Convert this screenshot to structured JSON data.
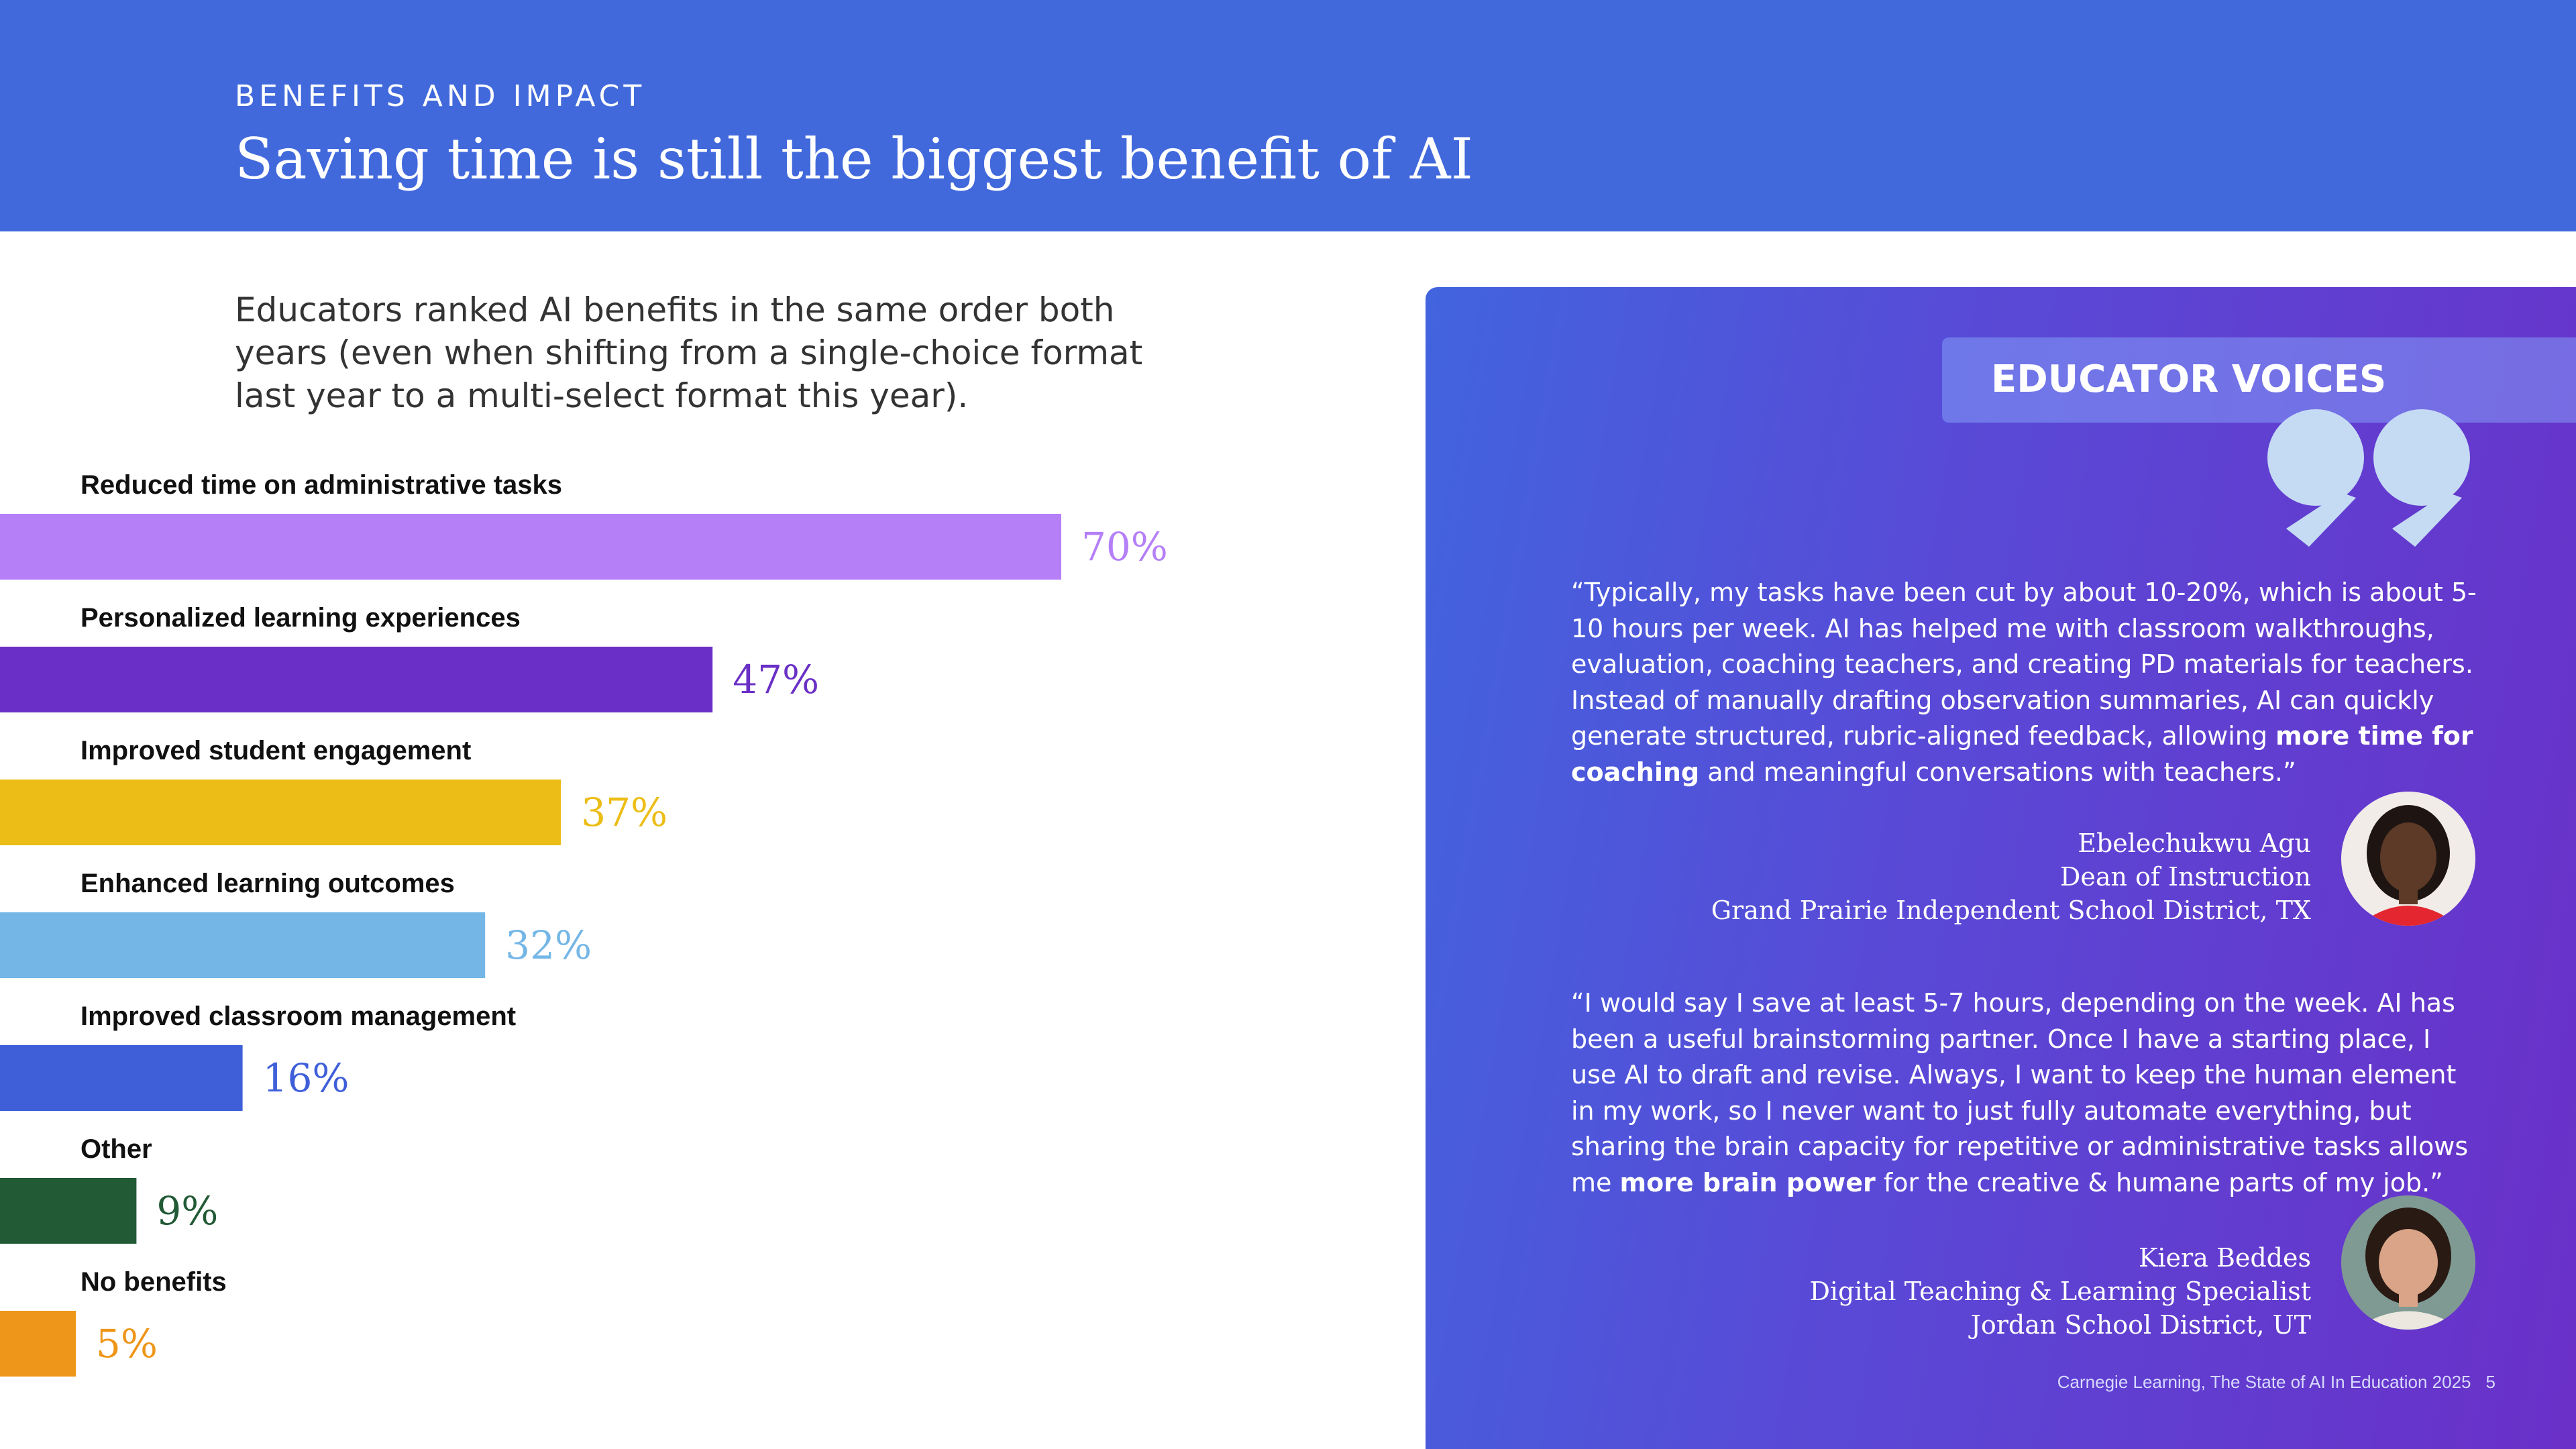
{
  "header": {
    "eyebrow": "BENEFITS AND IMPACT",
    "title": "Saving time is still the biggest benefit of AI",
    "background": "#4169dc"
  },
  "intro": {
    "text": "Educators ranked AI benefits in the same order both years (even when shifting from a single-choice format last year to a multi-select format this year)."
  },
  "chart_data": {
    "type": "bar",
    "orientation": "horizontal",
    "categories": [
      "Reduced time on administrative tasks",
      "Personalized learning experiences",
      "Improved student engagement",
      "Enhanced learning outcomes",
      "Improved classroom management",
      "Other",
      "No benefits"
    ],
    "values": [
      70,
      47,
      37,
      32,
      16,
      9,
      5
    ],
    "value_labels": [
      "70%",
      "47%",
      "37%",
      "32%",
      "16%",
      "9%",
      "5%"
    ],
    "colors": [
      "#b57ff8",
      "#6a2fc6",
      "#ecbd16",
      "#74b7e7",
      "#3f5fd9",
      "#215a35",
      "#ee9619"
    ],
    "unit": "%",
    "xlim": [
      0,
      100
    ],
    "grid": false,
    "legend": "none"
  },
  "panel": {
    "tag": "EDUCATOR VOICES",
    "quote_icon": "quote-marks-icon",
    "testimonials": [
      {
        "quote_before": "“Typically, my tasks have been cut by about 10-20%, which is about 5-10 hours per week. AI has helped me with classroom walkthroughs, evaluation, coaching teachers, and creating PD materials for teachers. Instead of manually drafting observation summaries, AI can quickly generate structured, rubric-aligned feedback, allowing ",
        "quote_bold": "more time for coaching",
        "quote_after": " and meaningful conversations with teachers.”",
        "name": "Ebelechukwu Agu",
        "role": "Dean of Instruction",
        "org": "Grand Prairie Independent School District, TX"
      },
      {
        "quote_before": "“I would say I save at least 5-7 hours, depending on the week. AI has been a useful brainstorming partner. Once I have a starting place, I use AI to draft and revise. Always, I want to keep the human element in my work, so I never want to just fully automate everything, but sharing the brain capacity for repetitive or administrative tasks allows me ",
        "quote_bold": "more brain power",
        "quote_after": " for the creative & humane parts of my job.”",
        "name": "Kiera Beddes",
        "role": "Digital Teaching & Learning Specialist",
        "org": "Jordan School District, UT"
      }
    ]
  },
  "footer": {
    "source": "Carnegie Learning, The State of AI In Education 2025",
    "page": "5"
  }
}
